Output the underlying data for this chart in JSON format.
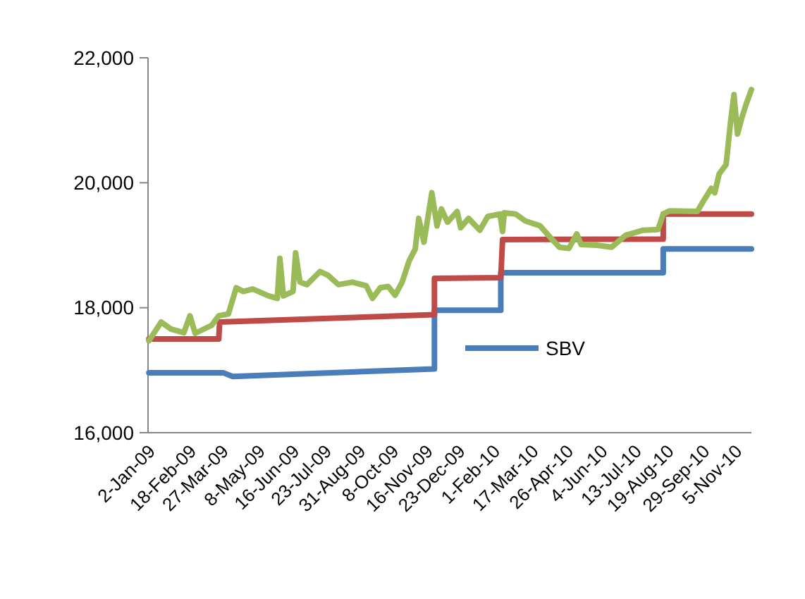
{
  "chart_data": {
    "type": "line",
    "series": [
      {
        "name": "SBV",
        "color": "#4a7ebb",
        "x": [
          "2008-12-31",
          "2009-03-26",
          "2009-04-06",
          "2009-11-23",
          "2009-11-23",
          "2010-02-07",
          "2010-02-07",
          "2010-08-12",
          "2010-08-12",
          "2010-11-21"
        ],
        "values": [
          16960,
          16960,
          16900,
          17020,
          17960,
          17960,
          18560,
          18560,
          18940,
          18940
        ]
      },
      {
        "color": "#be4b48",
        "x": [
          "2008-12-31",
          "2009-03-21",
          "2009-03-22",
          "2009-11-23",
          "2009-11-23",
          "2010-02-07",
          "2010-02-09",
          "2010-08-12",
          "2010-08-12",
          "2010-11-21"
        ],
        "values": [
          17500,
          17500,
          17770,
          17890,
          18470,
          18480,
          19090,
          19100,
          19500,
          19500
        ]
      },
      {
        "color": "#9bbb59",
        "x": [
          "2008-12-31",
          "2009-01-14",
          "2009-01-25",
          "2009-02-09",
          "2009-02-16",
          "2009-02-22",
          "2009-03-13",
          "2009-03-21",
          "2009-04-01",
          "2009-04-10",
          "2009-04-18",
          "2009-04-29",
          "2009-05-17",
          "2009-05-27",
          "2009-05-30",
          "2009-06-03",
          "2009-06-14",
          "2009-06-17",
          "2009-06-22",
          "2009-06-30",
          "2009-07-15",
          "2009-07-24",
          "2009-08-05",
          "2009-08-21",
          "2009-09-06",
          "2009-09-13",
          "2009-09-22",
          "2009-10-01",
          "2009-10-09",
          "2009-10-17",
          "2009-10-25",
          "2009-11-01",
          "2009-11-05",
          "2009-11-11",
          "2009-11-20",
          "2009-11-26",
          "2009-12-01",
          "2009-12-08",
          "2009-12-19",
          "2009-12-23",
          "2010-01-01",
          "2010-01-14",
          "2010-01-23",
          "2010-02-06",
          "2010-02-09",
          "2010-02-11",
          "2010-02-24",
          "2010-03-07",
          "2010-03-24",
          "2010-04-05",
          "2010-04-15",
          "2010-04-26",
          "2010-05-05",
          "2010-05-10",
          "2010-05-28",
          "2010-06-14",
          "2010-06-30",
          "2010-07-20",
          "2010-08-06",
          "2010-08-12",
          "2010-08-19",
          "2010-09-20",
          "2010-09-28",
          "2010-10-06",
          "2010-10-10",
          "2010-10-15",
          "2010-10-23",
          "2010-10-28",
          "2010-11-01",
          "2010-11-05",
          "2010-11-10",
          "2010-11-15",
          "2010-11-21"
        ],
        "values": [
          17470,
          17770,
          17660,
          17600,
          17870,
          17590,
          17720,
          17870,
          17900,
          18320,
          18260,
          18300,
          18190,
          18150,
          18790,
          18190,
          18260,
          18880,
          18410,
          18370,
          18580,
          18520,
          18370,
          18410,
          18350,
          18150,
          18320,
          18340,
          18200,
          18410,
          18750,
          18940,
          19430,
          19050,
          19840,
          19310,
          19580,
          19370,
          19540,
          19280,
          19430,
          19240,
          19460,
          19500,
          19220,
          19520,
          19500,
          19390,
          19310,
          19120,
          18970,
          18950,
          19180,
          19010,
          19000,
          18970,
          19160,
          19240,
          19250,
          19500,
          19550,
          19540,
          19730,
          19910,
          19840,
          20140,
          20290,
          20960,
          21410,
          20780,
          21040,
          21260,
          21490
        ]
      }
    ],
    "xlim": [
      "2008-12-30",
      "2010-11-21"
    ],
    "xticks": [
      {
        "value": "2009-01-02",
        "label": "2-Jan-09"
      },
      {
        "value": "2009-02-18",
        "label": "18-Feb-09"
      },
      {
        "value": "2009-03-27",
        "label": "27-Mar-09"
      },
      {
        "value": "2009-05-08",
        "label": "8-May-09"
      },
      {
        "value": "2009-06-16",
        "label": "16-Jun-09"
      },
      {
        "value": "2009-07-23",
        "label": "23-Jul-09"
      },
      {
        "value": "2009-08-31",
        "label": "31-Aug-09"
      },
      {
        "value": "2009-10-08",
        "label": "8-Oct-09"
      },
      {
        "value": "2009-11-16",
        "label": "16-Nov-09"
      },
      {
        "value": "2009-12-23",
        "label": "23-Dec-09"
      },
      {
        "value": "2010-02-01",
        "label": "1-Feb-10"
      },
      {
        "value": "2010-03-17",
        "label": "17-Mar-10"
      },
      {
        "value": "2010-04-26",
        "label": "26-Apr-10"
      },
      {
        "value": "2010-06-04",
        "label": "4-Jun-10"
      },
      {
        "value": "2010-07-13",
        "label": "13-Jul-10"
      },
      {
        "value": "2010-08-19",
        "label": "19-Aug-10"
      },
      {
        "value": "2010-09-29",
        "label": "29-Sep-10"
      },
      {
        "value": "2010-11-05",
        "label": "5-Nov-10"
      }
    ],
    "ylim": [
      16000,
      22000
    ],
    "yticks": [
      {
        "value": 16000,
        "label": "16,000"
      },
      {
        "value": 18000,
        "label": "18,000"
      },
      {
        "value": 20000,
        "label": "20,000"
      },
      {
        "value": 22000,
        "label": "22,000"
      }
    ],
    "grid": false,
    "legend": "bottom",
    "marker": "none",
    "line_style": "solid"
  }
}
